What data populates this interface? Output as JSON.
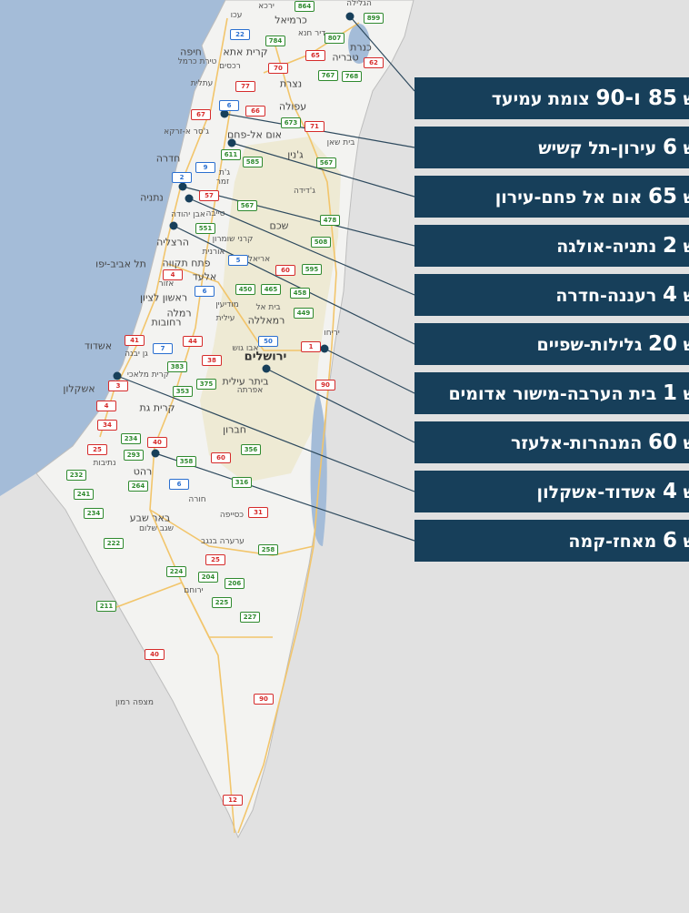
{
  "colors": {
    "background": "#e1e1e1",
    "sea": "#a4bcd8",
    "land": "#f3f3f1",
    "label_box": "#173f5a",
    "route_red": "#d62b2b",
    "route_green": "#2f8a2f",
    "route_blue": "#2a6fd0",
    "roads": "#f2c56b"
  },
  "callouts": [
    {
      "prefix": "ש",
      "road": "85 ו-90",
      "place": "צומת עמיעד"
    },
    {
      "prefix": "ש",
      "road": "6",
      "place": "עירון-תל קשיש"
    },
    {
      "prefix": "ש",
      "road": "65",
      "place": "אום אל פחם-עירון"
    },
    {
      "prefix": "ש",
      "road": "2",
      "place": "נתניה-אולגה"
    },
    {
      "prefix": "ש",
      "road": "4",
      "place": "רעננה-חדרה"
    },
    {
      "prefix": "ש",
      "road": "20",
      "place": "גלילות-שפיים"
    },
    {
      "prefix": "ש",
      "road": "1",
      "place": "בית הערבה-מישור אדומים"
    },
    {
      "prefix": "ש",
      "road": "60",
      "place": "המנהרות-אלעזר"
    },
    {
      "prefix": "ש",
      "road": "4",
      "place": "אשדוד-אשקלון"
    },
    {
      "prefix": "ש",
      "road": "6",
      "place": "מאחז-קמה"
    }
  ],
  "cities": [
    "ירכא",
    "עכו",
    "כרמיאל",
    "הגלילה",
    "דיר חנא",
    "קרית אתא",
    "חיפה",
    "טירת כרמל",
    "רכסים",
    "כנרת",
    "טבריה",
    "עתלית",
    "נצרת",
    "עפולה",
    "ג'סר א-זרקא",
    "אום אל-פחם",
    "בית שאן",
    "חדרה",
    "ג'נין",
    "ג'ת",
    "זמר",
    "ג'דידה",
    "נתניה",
    "אבן יהודה",
    "טייבה",
    "שכם",
    "הרצליה",
    "קרני שומרון",
    "אורנית",
    "אריאל",
    "תל אביב-יפו",
    "פתח תקווה",
    "אזור",
    "אלעד",
    "ראשון לציון",
    "מודיעין",
    "בית אל",
    "רמלה",
    "רחובות",
    "עילית",
    "רמאללה",
    "יריחו",
    "אשדוד",
    "גן יבנה",
    "אבו גוש",
    "ירושלים",
    "קרית מלאכי",
    "אשקלון",
    "ביתר עילית",
    "אפרתה",
    "קרית גת",
    "חברון",
    "נתיבות",
    "רהט",
    "חורה",
    "באר שבע",
    "שגב שלום",
    "כסייפה",
    "ערערה בנגב",
    "ירוחם",
    "מצפה רמון"
  ],
  "routes": [
    {
      "n": "864",
      "c": "g"
    },
    {
      "n": "899",
      "c": "g"
    },
    {
      "n": "22",
      "c": "b"
    },
    {
      "n": "784",
      "c": "g"
    },
    {
      "n": "807",
      "c": "g"
    },
    {
      "n": "65",
      "c": "r"
    },
    {
      "n": "62",
      "c": "r"
    },
    {
      "n": "70",
      "c": "r"
    },
    {
      "n": "767",
      "c": "g"
    },
    {
      "n": "768",
      "c": "g"
    },
    {
      "n": "77",
      "c": "r"
    },
    {
      "n": "6",
      "c": "b"
    },
    {
      "n": "66",
      "c": "r"
    },
    {
      "n": "67",
      "c": "r"
    },
    {
      "n": "673",
      "c": "g"
    },
    {
      "n": "71",
      "c": "r"
    },
    {
      "n": "611",
      "c": "g"
    },
    {
      "n": "585",
      "c": "g"
    },
    {
      "n": "9",
      "c": "b"
    },
    {
      "n": "567",
      "c": "g"
    },
    {
      "n": "2",
      "c": "b"
    },
    {
      "n": "57",
      "c": "r"
    },
    {
      "n": "567",
      "c": "g"
    },
    {
      "n": "478",
      "c": "g"
    },
    {
      "n": "551",
      "c": "g"
    },
    {
      "n": "508",
      "c": "g"
    },
    {
      "n": "5",
      "c": "b"
    },
    {
      "n": "60",
      "c": "r"
    },
    {
      "n": "595",
      "c": "g"
    },
    {
      "n": "4",
      "c": "r"
    },
    {
      "n": "6",
      "c": "b"
    },
    {
      "n": "450",
      "c": "g"
    },
    {
      "n": "465",
      "c": "g"
    },
    {
      "n": "458",
      "c": "g"
    },
    {
      "n": "449",
      "c": "g"
    },
    {
      "n": "41",
      "c": "r"
    },
    {
      "n": "44",
      "c": "r"
    },
    {
      "n": "50",
      "c": "b"
    },
    {
      "n": "1",
      "c": "r"
    },
    {
      "n": "7",
      "c": "b"
    },
    {
      "n": "38",
      "c": "r"
    },
    {
      "n": "383",
      "c": "g"
    },
    {
      "n": "375",
      "c": "g"
    },
    {
      "n": "90",
      "c": "r"
    },
    {
      "n": "3",
      "c": "r"
    },
    {
      "n": "353",
      "c": "g"
    },
    {
      "n": "4",
      "c": "r"
    },
    {
      "n": "34",
      "c": "r"
    },
    {
      "n": "234",
      "c": "g"
    },
    {
      "n": "40",
      "c": "r"
    },
    {
      "n": "25",
      "c": "r"
    },
    {
      "n": "293",
      "c": "g"
    },
    {
      "n": "358",
      "c": "g"
    },
    {
      "n": "60",
      "c": "r"
    },
    {
      "n": "356",
      "c": "g"
    },
    {
      "n": "232",
      "c": "g"
    },
    {
      "n": "264",
      "c": "g"
    },
    {
      "n": "6",
      "c": "b"
    },
    {
      "n": "316",
      "c": "g"
    },
    {
      "n": "241",
      "c": "g"
    },
    {
      "n": "234",
      "c": "g"
    },
    {
      "n": "31",
      "c": "r"
    },
    {
      "n": "222",
      "c": "g"
    },
    {
      "n": "258",
      "c": "g"
    },
    {
      "n": "25",
      "c": "r"
    },
    {
      "n": "224",
      "c": "g"
    },
    {
      "n": "204",
      "c": "g"
    },
    {
      "n": "206",
      "c": "g"
    },
    {
      "n": "225",
      "c": "g"
    },
    {
      "n": "211",
      "c": "g"
    },
    {
      "n": "227",
      "c": "g"
    },
    {
      "n": "40",
      "c": "r"
    },
    {
      "n": "90",
      "c": "r"
    },
    {
      "n": "12",
      "c": "r"
    }
  ]
}
